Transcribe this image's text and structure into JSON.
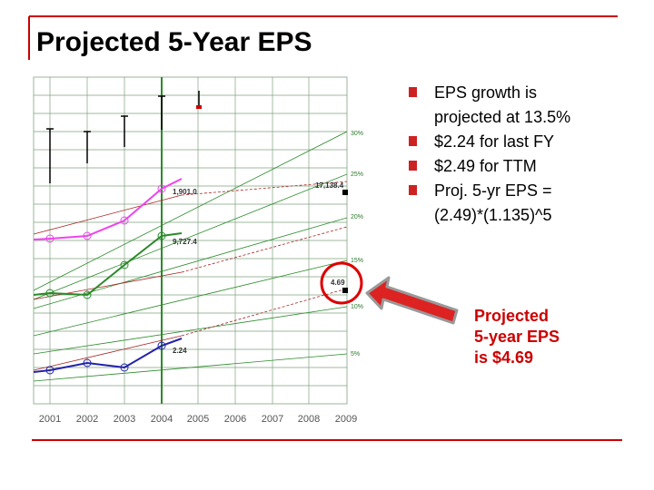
{
  "header": {
    "title": "Projected 5-Year EPS"
  },
  "bullets": [
    [
      "EPS growth is",
      "projected at 13.5%"
    ],
    [
      "$2.24 for last FY"
    ],
    [
      "$2.49 for TTM"
    ],
    [
      "Proj. 5-yr EPS =",
      "(2.49)*(1.135)^5"
    ]
  ],
  "chart": {
    "years": [
      "2001",
      "2002",
      "2003",
      "2004",
      "2005",
      "2006",
      "2007",
      "2008",
      "2009"
    ],
    "rate_labels": [
      "30%",
      "25%",
      "20%",
      "15%",
      "10%",
      "5%"
    ],
    "point_labels": [
      "1,901.0",
      "17,138.4",
      "9,727.4",
      "4.69",
      "2.24"
    ]
  },
  "callout": [
    "Projected",
    "5-year EPS",
    "is $4.69"
  ]
}
